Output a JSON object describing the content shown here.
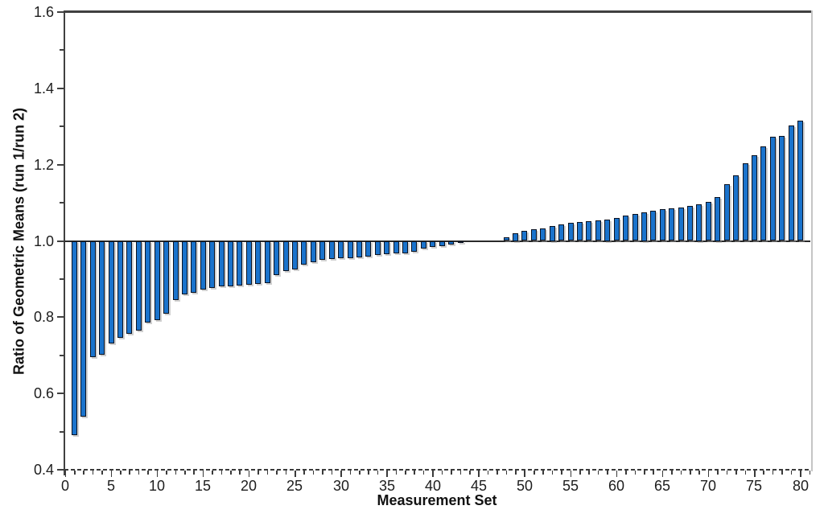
{
  "chart_data": {
    "type": "bar",
    "title": "",
    "xlabel": "Measurement Set",
    "ylabel": "Ratio of Geometric Means (run 1/run 2)",
    "x_start": 1,
    "values": [
      0.49,
      0.54,
      0.695,
      0.701,
      0.732,
      0.745,
      0.757,
      0.766,
      0.785,
      0.792,
      0.81,
      0.845,
      0.86,
      0.865,
      0.873,
      0.877,
      0.88,
      0.881,
      0.883,
      0.886,
      0.888,
      0.89,
      0.91,
      0.92,
      0.926,
      0.938,
      0.944,
      0.95,
      0.953,
      0.954,
      0.955,
      0.956,
      0.958,
      0.964,
      0.965,
      0.967,
      0.968,
      0.972,
      0.98,
      0.984,
      0.987,
      0.991,
      0.996,
      0.999,
      1.0,
      1.0,
      1.001,
      1.01,
      1.021,
      1.027,
      1.03,
      1.033,
      1.039,
      1.044,
      1.047,
      1.049,
      1.052,
      1.054,
      1.057,
      1.061,
      1.066,
      1.071,
      1.076,
      1.08,
      1.083,
      1.085,
      1.087,
      1.091,
      1.096,
      1.103,
      1.115,
      1.148,
      1.172,
      1.203,
      1.224,
      1.247,
      1.274,
      1.276,
      1.302,
      1.316
    ],
    "baseline": 1.0,
    "ylim": [
      0.4,
      1.6
    ],
    "xlim": [
      0,
      81
    ],
    "y_major_ticks": [
      {
        "v": 0.4,
        "label": "0.4"
      },
      {
        "v": 0.6,
        "label": "0.6"
      },
      {
        "v": 0.8,
        "label": "0.8"
      },
      {
        "v": 1.0,
        "label": "1.0"
      },
      {
        "v": 1.2,
        "label": "1.2"
      },
      {
        "v": 1.4,
        "label": "1.4"
      },
      {
        "v": 1.6,
        "label": "1.6"
      }
    ],
    "y_minor_ticks": [
      0.5,
      0.7,
      0.9,
      1.1,
      1.3,
      1.5
    ],
    "x_major_ticks": [
      {
        "v": 0,
        "label": "0"
      },
      {
        "v": 5,
        "label": "5"
      },
      {
        "v": 10,
        "label": "10"
      },
      {
        "v": 15,
        "label": "15"
      },
      {
        "v": 20,
        "label": "20"
      },
      {
        "v": 25,
        "label": "25"
      },
      {
        "v": 30,
        "label": "30"
      },
      {
        "v": 35,
        "label": "35"
      },
      {
        "v": 40,
        "label": "40"
      },
      {
        "v": 45,
        "label": "45"
      },
      {
        "v": 50,
        "label": "50"
      },
      {
        "v": 55,
        "label": "55"
      },
      {
        "v": 60,
        "label": "60"
      },
      {
        "v": 65,
        "label": "65"
      },
      {
        "v": 70,
        "label": "70"
      },
      {
        "v": 75,
        "label": "75"
      },
      {
        "v": 80,
        "label": "80"
      }
    ],
    "x_minor_tick_step": 1,
    "grid": false,
    "legend": null,
    "bar_color": "#1a73cc",
    "bar_border_color": "#0b1322",
    "axis_color": "#3a3a3a",
    "right_border_color": "#c5c5c5",
    "baseline_color": "#2a2a2a"
  }
}
